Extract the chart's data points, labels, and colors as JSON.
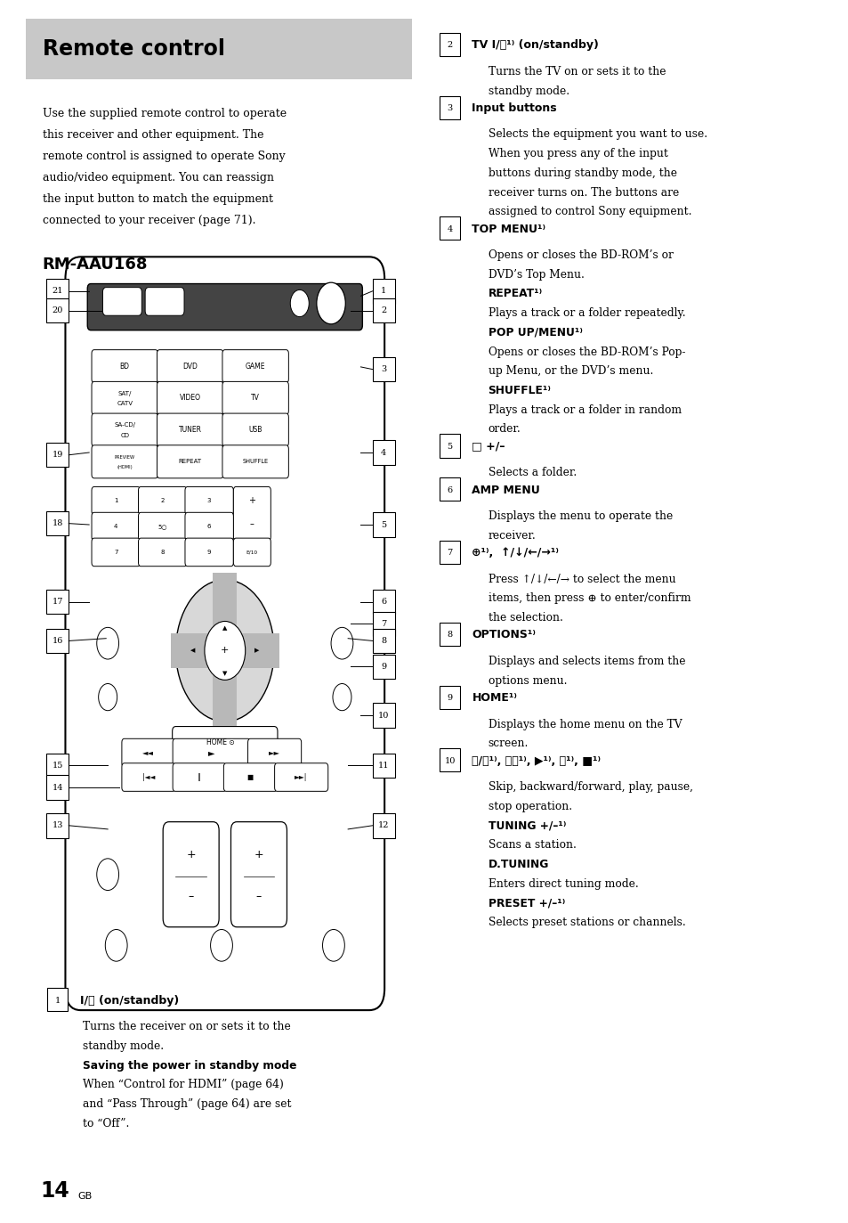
{
  "title": "Remote control",
  "subtitle_rm": "RM-AAU168",
  "bg_color": "#ffffff",
  "header_bg": "#c8c8c8",
  "page_number": "14",
  "page_suffix": "GB",
  "intro_lines": [
    "Use the supplied remote control to operate",
    "this receiver and other equipment. The",
    "remote control is assigned to operate Sony",
    "audio/video equipment. You can reassign",
    "the input button to match the equipment",
    "connected to your receiver (page 71)."
  ],
  "items_right": [
    {
      "num": "2",
      "bold_label": "TV I/⏻¹⁾ (on/standby)",
      "desc": [
        "Turns the TV on or sets it to the",
        "standby mode."
      ],
      "subs": []
    },
    {
      "num": "3",
      "bold_label": "Input buttons",
      "desc": [
        "Selects the equipment you want to use.",
        "When you press any of the input",
        "buttons during standby mode, the",
        "receiver turns on. The buttons are",
        "assigned to control Sony equipment."
      ],
      "subs": []
    },
    {
      "num": "4",
      "bold_label": "TOP MENU¹⁾",
      "desc": [
        "Opens or closes the BD-ROM’s or",
        "DVD’s Top Menu."
      ],
      "subs": [
        {
          "label": "REPEAT¹⁾",
          "desc": [
            "Plays a track or a folder repeatedly."
          ]
        },
        {
          "label": "POP UP/MENU¹⁾",
          "desc": [
            "Opens or closes the BD-ROM’s Pop-",
            "up Menu, or the DVD’s menu."
          ]
        },
        {
          "label": "SHUFFLE¹⁾",
          "desc": [
            "Plays a track or a folder in random",
            "order."
          ]
        }
      ]
    },
    {
      "num": "5",
      "bold_label": "□ +/–",
      "desc": [
        "Selects a folder."
      ],
      "subs": []
    },
    {
      "num": "6",
      "bold_label": "AMP MENU",
      "desc": [
        "Displays the menu to operate the",
        "receiver."
      ],
      "subs": []
    },
    {
      "num": "7",
      "bold_label": "⊕¹⁾,  ↑/↓/←/→¹⁾",
      "desc": [
        "Press ↑/↓/←/→ to select the menu",
        "items, then press ⊕ to enter/confirm",
        "the selection."
      ],
      "subs": []
    },
    {
      "num": "8",
      "bold_label": "OPTIONS¹⁾",
      "desc": [
        "Displays and selects items from the",
        "options menu."
      ],
      "subs": []
    },
    {
      "num": "9",
      "bold_label": "HOME¹⁾",
      "desc": [
        "Displays the home menu on the TV",
        "screen."
      ],
      "subs": []
    },
    {
      "num": "10",
      "bold_label": "⏮/⏭¹⁾, ⏪⏩¹⁾, ▶¹⁾, ⏸¹⁾, ■¹⁾",
      "desc": [
        "Skip, backward/forward, play, pause,",
        "stop operation."
      ],
      "subs": [
        {
          "label": "TUNING +/–¹⁾",
          "desc": [
            "Scans a station."
          ]
        },
        {
          "label": "D.TUNING",
          "desc": [
            "Enters direct tuning mode."
          ]
        },
        {
          "label": "PRESET +/–¹⁾",
          "desc": [
            "Selects preset stations or channels."
          ]
        }
      ]
    }
  ],
  "items_left_bottom": [
    {
      "num": "1",
      "bold_label": "I/⏻ (on/standby)",
      "desc": [
        "Turns the receiver on or sets it to the",
        "standby mode."
      ],
      "subs": [
        {
          "label": "Saving the power in standby mode",
          "desc": [
            "When “Control for HDMI” (page 64)",
            "and “Pass Through” (page 64) are set",
            "to “Off”."
          ]
        }
      ]
    }
  ]
}
